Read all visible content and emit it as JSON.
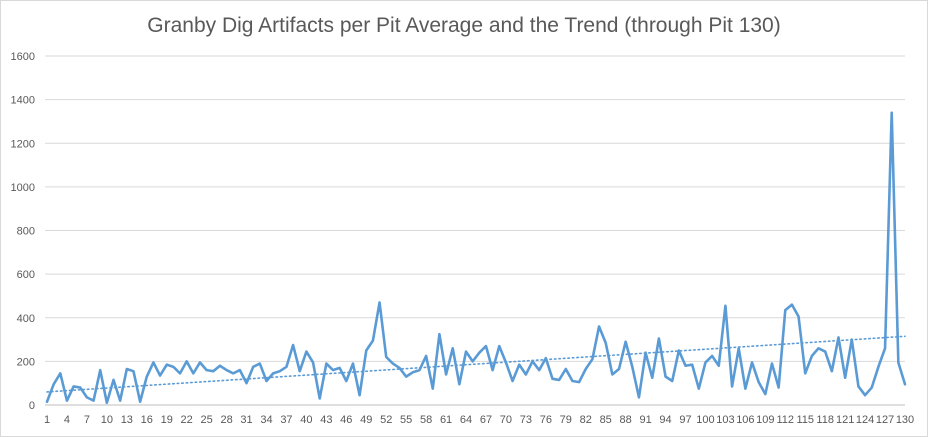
{
  "chart_data": {
    "type": "line",
    "title": "Granby Dig Artifacts per Pit Average and the Trend (through Pit 130)",
    "xlabel": "",
    "ylabel": "",
    "ylim": [
      0,
      1600
    ],
    "yticks": [
      0,
      200,
      400,
      600,
      800,
      1000,
      1200,
      1400,
      1600
    ],
    "x_tick_labels": [
      "1",
      "4",
      "7",
      "10",
      "13",
      "16",
      "19",
      "22",
      "25",
      "28",
      "31",
      "34",
      "37",
      "40",
      "43",
      "46",
      "49",
      "52",
      "55",
      "58",
      "61",
      "64",
      "67",
      "70",
      "73",
      "76",
      "79",
      "82",
      "85",
      "88",
      "91",
      "94",
      "97",
      "100",
      "103",
      "106",
      "109",
      "112",
      "115",
      "118",
      "121",
      "124",
      "127",
      "130"
    ],
    "x": [
      1,
      2,
      3,
      4,
      5,
      6,
      7,
      8,
      9,
      10,
      11,
      12,
      13,
      14,
      15,
      16,
      17,
      18,
      19,
      20,
      21,
      22,
      23,
      24,
      25,
      26,
      27,
      28,
      29,
      30,
      31,
      32,
      33,
      34,
      35,
      36,
      37,
      38,
      39,
      40,
      41,
      42,
      43,
      44,
      45,
      46,
      47,
      48,
      49,
      50,
      51,
      52,
      53,
      54,
      55,
      56,
      57,
      58,
      59,
      60,
      61,
      62,
      63,
      64,
      65,
      66,
      67,
      68,
      69,
      70,
      71,
      72,
      73,
      74,
      75,
      76,
      77,
      78,
      79,
      80,
      81,
      82,
      83,
      84,
      85,
      86,
      87,
      88,
      89,
      90,
      91,
      92,
      93,
      94,
      95,
      96,
      97,
      98,
      99,
      100,
      101,
      102,
      103,
      104,
      105,
      106,
      107,
      108,
      109,
      110,
      111,
      112,
      113,
      114,
      115,
      116,
      117,
      118,
      119,
      120,
      121,
      122,
      123,
      124,
      125,
      126,
      127,
      128,
      129,
      130
    ],
    "series": [
      {
        "values": [
          15,
          95,
          145,
          20,
          85,
          80,
          35,
          20,
          160,
          10,
          115,
          20,
          165,
          155,
          15,
          130,
          195,
          135,
          185,
          175,
          145,
          200,
          145,
          195,
          160,
          155,
          180,
          160,
          145,
          160,
          100,
          175,
          190,
          110,
          145,
          155,
          175,
          275,
          155,
          245,
          195,
          30,
          190,
          160,
          170,
          110,
          190,
          45,
          250,
          295,
          470,
          220,
          190,
          170,
          130,
          150,
          160,
          225,
          75,
          325,
          140,
          260,
          95,
          245,
          200,
          240,
          270,
          160,
          270,
          195,
          110,
          185,
          140,
          200,
          160,
          215,
          120,
          115,
          165,
          110,
          105,
          165,
          210,
          360,
          285,
          140,
          165,
          290,
          175,
          35,
          240,
          125,
          305,
          130,
          110,
          250,
          180,
          185,
          75,
          195,
          225,
          180,
          455,
          85,
          260,
          75,
          195,
          105,
          50,
          190,
          80,
          435,
          460,
          405,
          145,
          225,
          260,
          245,
          155,
          310,
          125,
          300,
          85,
          45,
          80,
          175,
          260,
          1340,
          195,
          95
        ]
      }
    ],
    "trendline": {
      "type": "linear",
      "style": "dotted",
      "from": 60,
      "to": 315
    },
    "colors": {
      "series": "#5b9bd5",
      "grid": "#d9d9d9",
      "text": "#595959"
    },
    "grid": true,
    "legend": "none"
  }
}
